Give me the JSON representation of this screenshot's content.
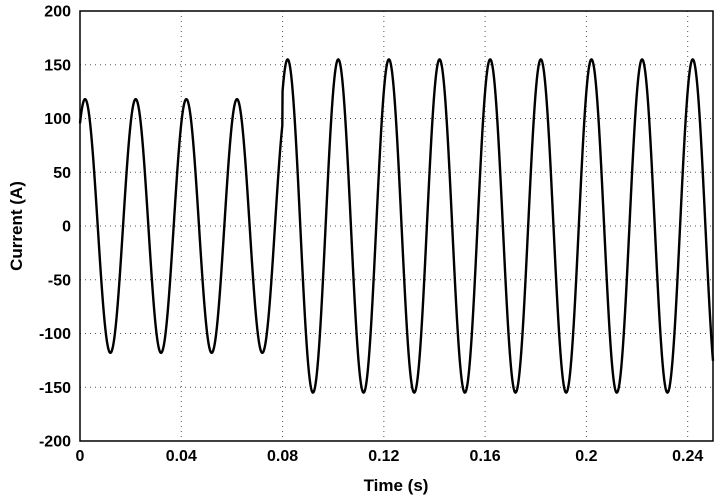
{
  "chart_data": {
    "type": "line",
    "title": "",
    "xlabel": "Time (s)",
    "ylabel": "Current (A)",
    "xlim": [
      0,
      0.25
    ],
    "ylim": [
      -200,
      200
    ],
    "xticks": [
      "0",
      "0.04",
      "0.08",
      "0.12",
      "0.16",
      "0.2",
      "0.24"
    ],
    "yticks": [
      "200",
      "150",
      "100",
      "50",
      "0",
      "-50",
      "-100",
      "-150",
      "-200"
    ],
    "grid": true,
    "legend": "none",
    "series": [
      {
        "color": "#000000",
        "waveform": "sinusoid",
        "frequency_hz": 50,
        "segments": [
          {
            "t_start": 0,
            "t_end": 0.08,
            "amplitude": 118,
            "peak_time": 0.002
          },
          {
            "t_start": 0.08,
            "t_end": 0.25,
            "amplitude": 155,
            "peak_time": 0.082
          }
        ]
      }
    ]
  }
}
